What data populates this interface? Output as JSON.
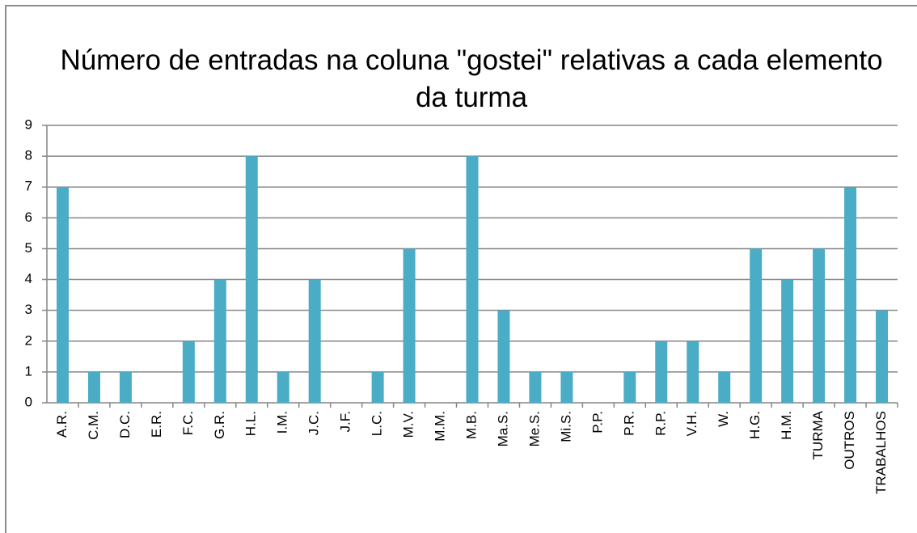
{
  "chart_data": {
    "type": "bar",
    "title": "Número de entradas na coluna \"gostei\" relativas a cada elemento da turma",
    "categories": [
      "A.R.",
      "C.M.",
      "D.C.",
      "E.R.",
      "F.C.",
      "G.R.",
      "H.L.",
      "I.M.",
      "J.C.",
      "J.F.",
      "L.C.",
      "M.V.",
      "M.M.",
      "M.B.",
      "Ma.S.",
      "Me.S.",
      "Mi.S.",
      "P.P.",
      "P.R.",
      "R.P.",
      "V.H.",
      "W.",
      "H.G.",
      "H.M.",
      "TURMA",
      "OUTROS",
      "TRABALHOS"
    ],
    "values": [
      7,
      1,
      1,
      0,
      2,
      4,
      8,
      1,
      4,
      0,
      1,
      5,
      0,
      8,
      3,
      1,
      1,
      0,
      1,
      2,
      2,
      1,
      5,
      4,
      5,
      7,
      3
    ],
    "color": "#4bacc6",
    "ylim": [
      0,
      9
    ],
    "yticks": [
      0,
      1,
      2,
      3,
      4,
      5,
      6,
      7,
      8,
      9
    ],
    "grid": true
  }
}
